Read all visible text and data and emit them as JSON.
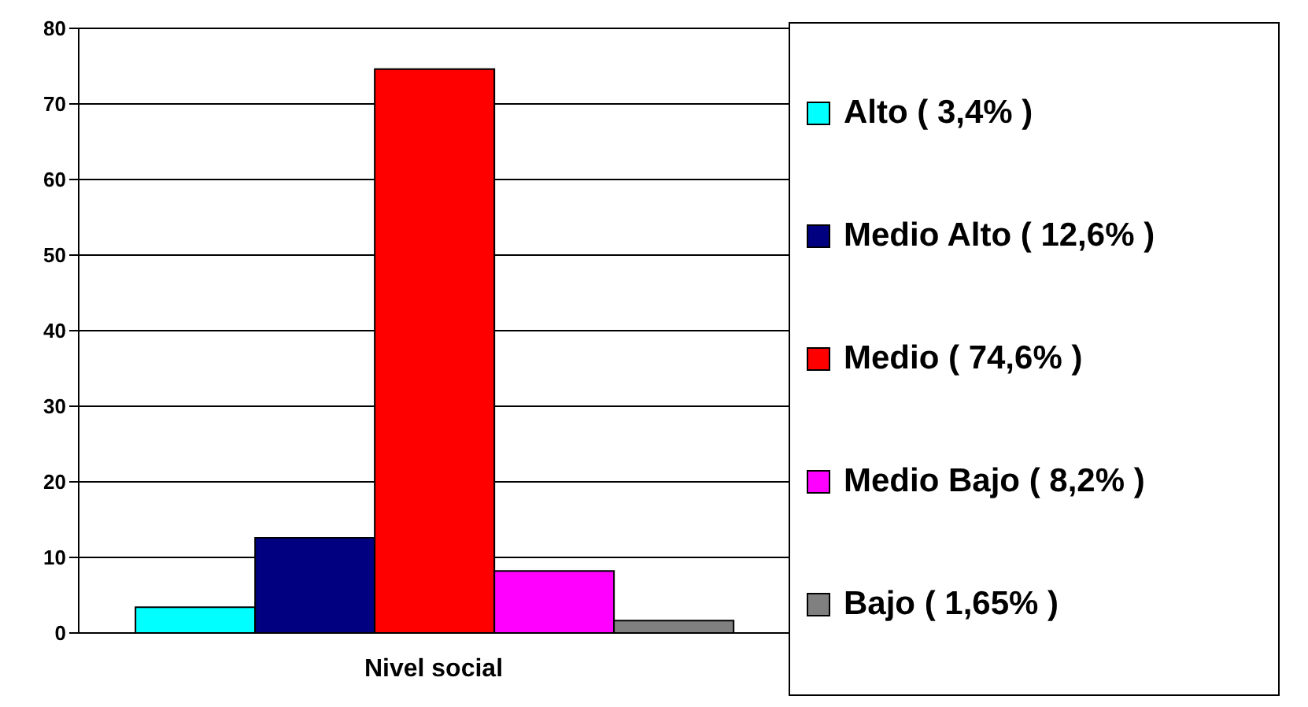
{
  "chart_data": {
    "type": "bar",
    "categories": [
      "Nivel social"
    ],
    "series": [
      {
        "name": "Alto ( 3,4% )",
        "color": "#00ffff",
        "values": [
          3.4
        ]
      },
      {
        "name": "Medio Alto ( 12,6% )",
        "color": "#000080",
        "values": [
          12.6
        ]
      },
      {
        "name": "Medio ( 74,6% )",
        "color": "#ff0000",
        "values": [
          74.6
        ]
      },
      {
        "name": "Medio Bajo ( 8,2% )",
        "color": "#ff00ff",
        "values": [
          8.2
        ]
      },
      {
        "name": "Bajo ( 1,65% )",
        "color": "#808080",
        "values": [
          1.65
        ]
      }
    ],
    "ylim": [
      0,
      80
    ],
    "yticks": [
      0,
      10,
      20,
      30,
      40,
      50,
      60,
      70,
      80
    ],
    "grid": "y",
    "legend": "right"
  }
}
